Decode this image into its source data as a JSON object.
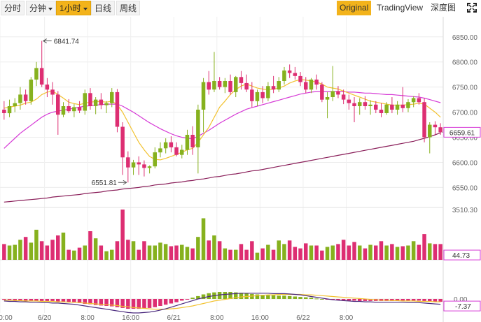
{
  "toolbar": {
    "tabs": [
      {
        "label": "分时",
        "caret": false,
        "active": false
      },
      {
        "label": "分钟",
        "caret": true,
        "active": false
      },
      {
        "label": "1小时",
        "caret": true,
        "active": true
      },
      {
        "label": "日线",
        "caret": false,
        "active": false
      },
      {
        "label": "周线",
        "caret": false,
        "active": false
      }
    ],
    "views": [
      {
        "label": "Original",
        "active": true
      },
      {
        "label": "TradingView",
        "active": false
      },
      {
        "label": "深度图",
        "active": false
      }
    ],
    "fullscreen_icon": "fullscreen-icon"
  },
  "colors": {
    "up": "#86b11e",
    "down": "#dd2e72",
    "ma_short": "#f2c230",
    "ma_mid": "#d63ad6",
    "ma_long": "#8a1f5a",
    "macd_dif": "#4b2a7e",
    "macd_dea": "#f2c230",
    "active_button": "#f3b31b"
  },
  "chart_data": {
    "type": "candlestick",
    "interval": "1小时",
    "x_tick_labels": [
      "0:00",
      "6/20",
      "8:00",
      "16:00",
      "6/21",
      "8:00",
      "16:00",
      "6/22",
      "8:00"
    ],
    "price_axis": {
      "ticks": [
        "6850.00",
        "6800.00",
        "6750.00",
        "6700.00",
        "6650.00",
        "6600.00",
        "6550.00"
      ],
      "range": [
        6520,
        6865
      ],
      "current_price": "6659.61"
    },
    "high_annotation": "6841.74",
    "low_annotation": "6551.81",
    "candles_ohlc": [
      [
        6705,
        6722,
        6685,
        6698
      ],
      [
        6698,
        6725,
        6690,
        6712
      ],
      [
        6712,
        6728,
        6700,
        6718
      ],
      [
        6718,
        6750,
        6705,
        6735
      ],
      [
        6735,
        6745,
        6715,
        6722
      ],
      [
        6722,
        6770,
        6715,
        6765
      ],
      [
        6765,
        6800,
        6752,
        6788
      ],
      [
        6788,
        6842,
        6750,
        6755
      ],
      [
        6755,
        6768,
        6730,
        6745
      ],
      [
        6745,
        6760,
        6715,
        6735
      ],
      [
        6735,
        6742,
        6655,
        6695
      ],
      [
        6695,
        6720,
        6690,
        6712
      ],
      [
        6712,
        6726,
        6698,
        6702
      ],
      [
        6702,
        6716,
        6690,
        6710
      ],
      [
        6710,
        6722,
        6698,
        6703
      ],
      [
        6703,
        6745,
        6695,
        6738
      ],
      [
        6738,
        6748,
        6705,
        6712
      ],
      [
        6712,
        6730,
        6696,
        6725
      ],
      [
        6725,
        6738,
        6706,
        6714
      ],
      [
        6714,
        6722,
        6698,
        6718
      ],
      [
        6718,
        6748,
        6710,
        6740
      ],
      [
        6740,
        6746,
        6660,
        6671
      ],
      [
        6671,
        6680,
        6575,
        6610
      ],
      [
        6610,
        6622,
        6560,
        6590
      ],
      [
        6590,
        6605,
        6575,
        6600
      ],
      [
        6600,
        6612,
        6575,
        6596
      ],
      [
        6596,
        6604,
        6572,
        6589
      ],
      [
        6589,
        6594,
        6578,
        6592
      ],
      [
        6592,
        6630,
        6588,
        6620
      ],
      [
        6620,
        6640,
        6610,
        6628
      ],
      [
        6628,
        6648,
        6618,
        6640
      ],
      [
        6640,
        6652,
        6620,
        6630
      ],
      [
        6630,
        6640,
        6612,
        6615
      ],
      [
        6615,
        6635,
        6608,
        6625
      ],
      [
        6625,
        6665,
        6615,
        6655
      ],
      [
        6655,
        6672,
        6615,
        6630
      ],
      [
        6630,
        6715,
        6578,
        6705
      ],
      [
        6705,
        6768,
        6660,
        6760
      ],
      [
        6760,
        6782,
        6735,
        6745
      ],
      [
        6745,
        6820,
        6740,
        6762
      ],
      [
        6762,
        6770,
        6745,
        6750
      ],
      [
        6750,
        6768,
        6738,
        6762
      ],
      [
        6762,
        6775,
        6735,
        6740
      ],
      [
        6740,
        6772,
        6730,
        6770
      ],
      [
        6770,
        6782,
        6745,
        6758
      ],
      [
        6758,
        6775,
        6740,
        6745
      ],
      [
        6745,
        6760,
        6710,
        6722
      ],
      [
        6722,
        6745,
        6712,
        6740
      ],
      [
        6740,
        6752,
        6718,
        6728
      ],
      [
        6728,
        6760,
        6722,
        6752
      ],
      [
        6752,
        6772,
        6738,
        6745
      ],
      [
        6745,
        6770,
        6740,
        6762
      ],
      [
        6762,
        6790,
        6755,
        6783
      ],
      [
        6783,
        6795,
        6768,
        6778
      ],
      [
        6778,
        6790,
        6765,
        6772
      ],
      [
        6772,
        6780,
        6752,
        6760
      ],
      [
        6760,
        6770,
        6738,
        6745
      ],
      [
        6745,
        6768,
        6738,
        6765
      ],
      [
        6765,
        6775,
        6745,
        6755
      ],
      [
        6755,
        6760,
        6720,
        6725
      ],
      [
        6725,
        6740,
        6688,
        6730
      ],
      [
        6730,
        6792,
        6722,
        6742
      ],
      [
        6742,
        6752,
        6728,
        6735
      ],
      [
        6735,
        6745,
        6716,
        6725
      ],
      [
        6725,
        6735,
        6705,
        6718
      ],
      [
        6718,
        6730,
        6680,
        6712
      ],
      [
        6712,
        6728,
        6695,
        6720
      ],
      [
        6720,
        6732,
        6705,
        6712
      ],
      [
        6712,
        6724,
        6695,
        6715
      ],
      [
        6715,
        6722,
        6698,
        6705
      ],
      [
        6705,
        6718,
        6690,
        6698
      ],
      [
        6698,
        6720,
        6695,
        6715
      ],
      [
        6715,
        6730,
        6698,
        6705
      ],
      [
        6705,
        6722,
        6695,
        6715
      ],
      [
        6715,
        6750,
        6700,
        6708
      ],
      [
        6708,
        6726,
        6700,
        6720
      ],
      [
        6720,
        6732,
        6710,
        6728
      ],
      [
        6728,
        6738,
        6715,
        6720
      ],
      [
        6720,
        6728,
        6640,
        6650
      ],
      [
        6650,
        6680,
        6618,
        6675
      ],
      [
        6675,
        6682,
        6655,
        6670
      ],
      [
        6670,
        6678,
        6655,
        6660
      ]
    ],
    "moving_averages": {
      "ma_short": [
        6708,
        6710,
        6712,
        6714,
        6718,
        6720,
        6726,
        6735,
        6740,
        6742,
        6735,
        6728,
        6720,
        6717,
        6715,
        6718,
        6720,
        6721,
        6721,
        6720,
        6722,
        6715,
        6700,
        6680,
        6660,
        6640,
        6625,
        6612,
        6606,
        6605,
        6608,
        6612,
        6616,
        6620,
        6625,
        6628,
        6640,
        6655,
        6670,
        6690,
        6710,
        6722,
        6735,
        6745,
        6752,
        6756,
        6752,
        6748,
        6746,
        6745,
        6746,
        6748,
        6752,
        6758,
        6762,
        6765,
        6764,
        6762,
        6760,
        6756,
        6750,
        6748,
        6746,
        6742,
        6738,
        6734,
        6730,
        6726,
        6722,
        6720,
        6718,
        6716,
        6714,
        6714,
        6714,
        6715,
        6716,
        6718,
        6716,
        6708,
        6700,
        6690
      ],
      "ma_mid": [
        6628,
        6638,
        6648,
        6658,
        6666,
        6674,
        6682,
        6690,
        6696,
        6700,
        6702,
        6704,
        6706,
        6708,
        6710,
        6712,
        6713,
        6714,
        6715,
        6716,
        6716,
        6716,
        6712,
        6706,
        6700,
        6693,
        6686,
        6679,
        6673,
        6667,
        6662,
        6657,
        6653,
        6650,
        6648,
        6647,
        6652,
        6658,
        6664,
        6671,
        6678,
        6684,
        6690,
        6696,
        6701,
        6706,
        6709,
        6712,
        6715,
        6718,
        6721,
        6724,
        6727,
        6730,
        6733,
        6736,
        6738,
        6740,
        6741,
        6741,
        6741,
        6741,
        6741,
        6741,
        6740,
        6740,
        6739,
        6738,
        6738,
        6737,
        6736,
        6735,
        6735,
        6734,
        6733,
        6732,
        6731,
        6730,
        6728,
        6725,
        6722,
        6719
      ],
      "ma_long": [
        6521,
        6522,
        6523,
        6524,
        6525,
        6526,
        6527,
        6528,
        6529,
        6531,
        6532,
        6533,
        6534,
        6535,
        6536,
        6538,
        6539,
        6540,
        6541,
        6543,
        6544,
        6545,
        6547,
        6548,
        6549,
        6550,
        6552,
        6553,
        6555,
        6556,
        6557,
        6559,
        6560,
        6561,
        6563,
        6564,
        6566,
        6567,
        6569,
        6571,
        6572,
        6574,
        6576,
        6577,
        6579,
        6581,
        6583,
        6584,
        6586,
        6588,
        6590,
        6592,
        6594,
        6596,
        6598,
        6600,
        6602,
        6604,
        6606,
        6608,
        6610,
        6612,
        6614,
        6616,
        6618,
        6620,
        6622,
        6624,
        6626,
        6628,
        6630,
        6632,
        6634,
        6636,
        6638,
        6640,
        6642,
        6645,
        6648,
        6651,
        6655,
        6659
      ]
    },
    "volume": {
      "axis_top": "3510.30",
      "current": "44.73",
      "values": [
        1100,
        1000,
        1050,
        1400,
        1600,
        1200,
        2100,
        1300,
        1000,
        1400,
        1700,
        1900,
        700,
        650,
        850,
        1000,
        2000,
        1500,
        1000,
        600,
        700,
        1300,
        3510,
        1400,
        1300,
        700,
        1300,
        1000,
        1000,
        1200,
        1100,
        950,
        1000,
        1050,
        900,
        800,
        1600,
        2900,
        1350,
        1700,
        1300,
        800,
        700,
        700,
        1100,
        700,
        1300,
        500,
        800,
        1050,
        700,
        1350,
        1100,
        1350,
        900,
        800,
        1150,
        1000,
        1000,
        650,
        900,
        1000,
        1100,
        1400,
        1000,
        1250,
        1000,
        800,
        1050,
        1000,
        1300,
        1000,
        1100,
        900,
        950,
        1000,
        1300,
        1050,
        1800,
        1150,
        1100,
        1100
      ]
    },
    "macd": {
      "zero_label": "0.00",
      "current": "-7.37",
      "histogram": [
        -2,
        -3,
        -3,
        -4,
        -4,
        -4,
        -5,
        -5,
        -5,
        -5,
        -6,
        -7,
        -8,
        -9,
        -10,
        -12,
        -13,
        -15,
        -16,
        -17,
        -18,
        -20,
        -22,
        -24,
        -24,
        -24,
        -23,
        -22,
        -20,
        -17,
        -14,
        -11,
        -8,
        -4,
        -1,
        3,
        7,
        11,
        14,
        16,
        17,
        17,
        17,
        16,
        15,
        14,
        12,
        11,
        10,
        9,
        9,
        8,
        8,
        7,
        6,
        5,
        4,
        3,
        1,
        0,
        -1,
        -2,
        -3,
        -3,
        -4,
        -4,
        -5,
        -5,
        -5,
        -5,
        -5,
        -5,
        -5,
        -5,
        -4,
        -4,
        -4,
        -4,
        -5,
        -6,
        -7,
        -7
      ],
      "dif": [
        -5,
        -6,
        -6,
        -7,
        -7,
        -8,
        -8,
        -9,
        -9,
        -10,
        -10,
        -11,
        -12,
        -13,
        -15,
        -17,
        -19,
        -21,
        -23,
        -25,
        -27,
        -29,
        -31,
        -33,
        -34,
        -34,
        -33,
        -32,
        -30,
        -27,
        -24,
        -20,
        -16,
        -12,
        -8,
        -4,
        0,
        3,
        6,
        8,
        10,
        11,
        12,
        13,
        14,
        14,
        14,
        14,
        14,
        14,
        13,
        13,
        13,
        12,
        11,
        10,
        8,
        6,
        4,
        2,
        0,
        -2,
        -3,
        -4,
        -5,
        -6,
        -6,
        -7,
        -7,
        -8,
        -8,
        -8,
        -8,
        -8,
        -8,
        -9,
        -9,
        -9,
        -10,
        -11,
        -12,
        -13
      ],
      "dea": [
        -3,
        -3,
        -4,
        -4,
        -5,
        -5,
        -5,
        -6,
        -6,
        -6,
        -7,
        -7,
        -8,
        -8,
        -9,
        -10,
        -11,
        -12,
        -13,
        -14,
        -15,
        -16,
        -18,
        -19,
        -21,
        -22,
        -23,
        -24,
        -25,
        -25,
        -25,
        -24,
        -23,
        -21,
        -19,
        -17,
        -14,
        -11,
        -8,
        -5,
        -3,
        -1,
        1,
        3,
        5,
        6,
        7,
        8,
        9,
        10,
        10,
        11,
        11,
        11,
        11,
        11,
        10,
        10,
        9,
        8,
        7,
        6,
        5,
        4,
        3,
        2,
        1,
        0,
        -1,
        -2,
        -3,
        -3,
        -4,
        -4,
        -5,
        -5,
        -5,
        -6,
        -6,
        -6,
        -7,
        -7
      ]
    }
  }
}
